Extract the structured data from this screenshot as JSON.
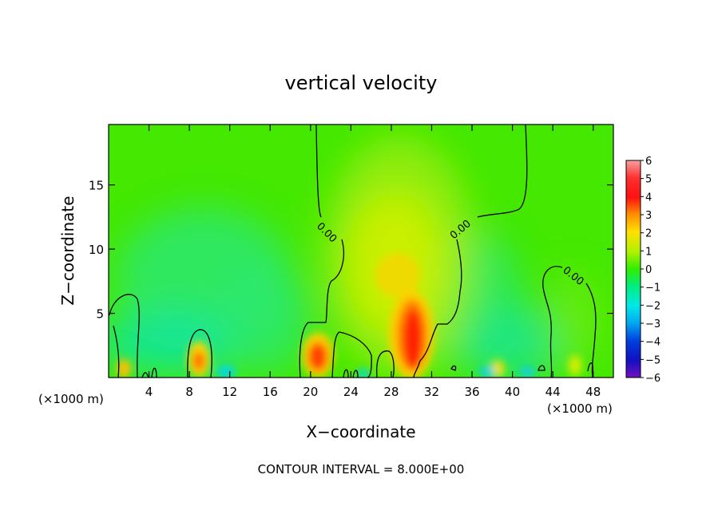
{
  "chart_data": {
    "type": "heatmap",
    "title": "vertical velocity",
    "xlabel": "X−coordinate",
    "ylabel": "Z−coordinate",
    "x_unit_left": "(×1000 m)",
    "x_unit_right": "(×1000 m)",
    "footer": "CONTOUR INTERVAL = 8.000E+00",
    "xlim": [
      0,
      50
    ],
    "ylim": [
      0,
      19.7
    ],
    "xticks": [
      "4",
      "8",
      "12",
      "16",
      "20",
      "24",
      "28",
      "32",
      "36",
      "40",
      "44",
      "48"
    ],
    "yticks": [
      "5",
      "10",
      "15"
    ],
    "contour_labels": [
      "0.00",
      "0.00",
      "0.00"
    ],
    "colorbar": {
      "min": -6,
      "max": 6,
      "tick_labels": [
        "6",
        "5",
        "4",
        "3",
        "2",
        "1",
        "0",
        "−1",
        "−2",
        "−3",
        "−4",
        "−5",
        "−6"
      ]
    },
    "features": [
      {
        "x": 30,
        "z": 3,
        "value": 6
      },
      {
        "x": 21,
        "z": 1.8,
        "value": 4.5
      },
      {
        "x": 9,
        "z": 1.5,
        "value": 3
      },
      {
        "x": 1.6,
        "z": 0.7,
        "value": 2
      },
      {
        "x": 38.5,
        "z": 0.6,
        "value": 1.5
      },
      {
        "x": 47,
        "z": 1.2,
        "value": 1
      },
      {
        "x": 28.5,
        "z": 9,
        "value": 1.5
      },
      {
        "x": 13,
        "z": 3,
        "value": -1
      },
      {
        "x": 40,
        "z": 4.5,
        "value": -1
      }
    ]
  }
}
